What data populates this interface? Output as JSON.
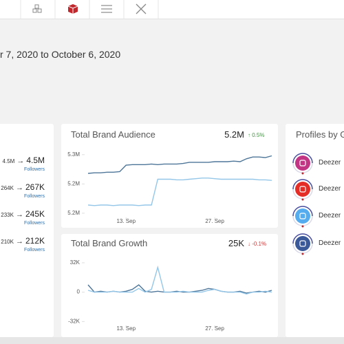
{
  "date_range": "r 7, 2020 to October 6, 2020",
  "arrow": "→",
  "profile_rows": [
    {
      "from": "4.5M",
      "to": "4.5M",
      "metric": "Followers"
    },
    {
      "from": "264K",
      "to": "267K",
      "metric": "Followers"
    },
    {
      "from": "233K",
      "to": "245K",
      "metric": "Followers"
    },
    {
      "from": "210K",
      "to": "212K",
      "metric": "Followers"
    }
  ],
  "profiles_panel": {
    "title": "Profiles by G",
    "profiles": [
      {
        "network": "instagram",
        "name": "Deezer"
      },
      {
        "network": "youtube",
        "name": "Deezer"
      },
      {
        "network": "twitter",
        "name": "Deezer"
      },
      {
        "network": "facebook",
        "name": "Deezer"
      }
    ]
  },
  "chart_data": [
    {
      "type": "line",
      "title": "Total Brand Audience",
      "total": "5.2M",
      "change": "↑ 0.5%",
      "change_color": "#3c9a3c",
      "categories": [
        null,
        null,
        null,
        null,
        null,
        null,
        "13. Sep",
        null,
        null,
        null,
        null,
        null,
        null,
        null,
        null,
        null,
        null,
        null,
        null,
        null,
        "27. Sep",
        null,
        null,
        null,
        null,
        null,
        null,
        null,
        null,
        null
      ],
      "series": [
        {
          "color": "#4d7598",
          "values": [
            5.218,
            5.219,
            5.219,
            5.22,
            5.22,
            5.221,
            5.232,
            5.233,
            5.233,
            5.233,
            5.234,
            5.233,
            5.234,
            5.234,
            5.234,
            5.235,
            5.237,
            5.237,
            5.237,
            5.237,
            5.238,
            5.238,
            5.238,
            5.239,
            5.238,
            5.243,
            5.246,
            5.246,
            5.245,
            5.248
          ]
        },
        {
          "color": "#93c6e8",
          "values": [
            5.164,
            5.163,
            5.164,
            5.164,
            5.163,
            5.164,
            5.164,
            5.164,
            5.163,
            5.164,
            5.164,
            5.208,
            5.208,
            5.208,
            5.207,
            5.207,
            5.208,
            5.209,
            5.21,
            5.21,
            5.209,
            5.208,
            5.208,
            5.208,
            5.208,
            5.208,
            5.208,
            5.207,
            5.207,
            5.206
          ]
        }
      ],
      "ylim": [
        5.144,
        5.258
      ],
      "yticks": [
        {
          "value": 5.25,
          "label": "5.3M"
        },
        {
          "value": 5.2,
          "label": "5.2M"
        },
        {
          "value": 5.15,
          "label": "5.2M"
        }
      ]
    },
    {
      "type": "line",
      "title": "Total Brand Growth",
      "total": "25K",
      "change": "↓ -0.1%",
      "change_color": "#d03a3a",
      "categories": [
        null,
        null,
        null,
        null,
        null,
        null,
        "13. Sep",
        null,
        null,
        null,
        null,
        null,
        null,
        null,
        null,
        null,
        null,
        null,
        null,
        null,
        "27. Sep",
        null,
        null,
        null,
        null,
        null,
        null,
        null,
        null,
        null
      ],
      "series": [
        {
          "color": "#4d7598",
          "values": [
            8,
            0,
            1,
            0,
            1,
            0,
            1,
            3,
            8,
            1,
            0,
            1,
            0,
            0,
            1,
            0,
            0,
            1,
            2,
            4,
            3,
            1,
            0,
            0,
            1,
            -1,
            0,
            1,
            0,
            2
          ]
        },
        {
          "color": "#93c6e8",
          "values": [
            2,
            0,
            0,
            0,
            1,
            0,
            0,
            0,
            4,
            0,
            3,
            27,
            0,
            0,
            0,
            1,
            0,
            0,
            0,
            2,
            3,
            1,
            0,
            0,
            0,
            -2,
            0,
            0,
            1,
            0
          ]
        }
      ],
      "ylim": [
        -35.5,
        37.2
      ],
      "yticks": [
        {
          "value": 32,
          "label": "32K"
        },
        0,
        {
          "value": -32,
          "label": "-32K"
        }
      ]
    }
  ]
}
